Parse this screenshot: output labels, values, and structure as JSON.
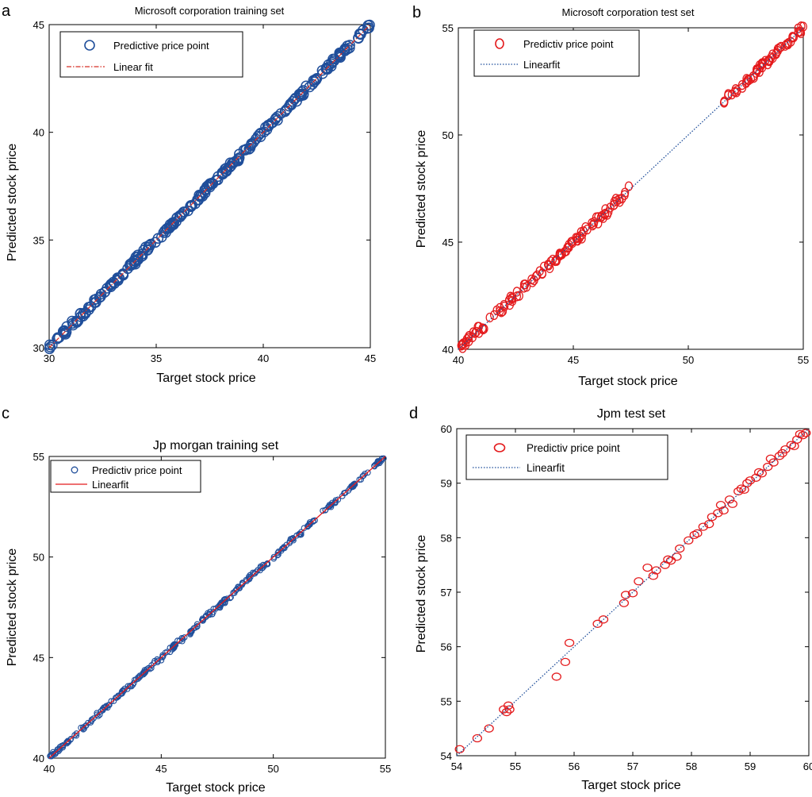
{
  "chart_data": [
    {
      "type": "scatter",
      "panel_label": "a",
      "title": "Microsoft corporation training set",
      "xlabel": "Target stock price",
      "ylabel": "Predicted stock price",
      "xlim": [
        30,
        45
      ],
      "ylim": [
        30,
        45
      ],
      "xticks": [
        30,
        35,
        40,
        45
      ],
      "yticks": [
        30,
        35,
        40,
        45
      ],
      "legend_position": "top-left",
      "series": [
        {
          "name": "Predictive price point",
          "marker": "circle",
          "color": "#1f4e9a",
          "ranges": [
            [
              30.0,
              45.0
            ]
          ],
          "count": 260,
          "noise": 0.12
        },
        {
          "name": "Linear fit",
          "line_style": "dashdot",
          "color": "#d73027",
          "slope": 1,
          "intercept": 0
        }
      ]
    },
    {
      "type": "scatter",
      "panel_label": "b",
      "title": "Microsoft corporation test set",
      "xlabel": "Target stock price",
      "ylabel": "Predicted stock price",
      "xlim": [
        40,
        55
      ],
      "ylim": [
        40,
        55
      ],
      "xticks": [
        40,
        45,
        50,
        55
      ],
      "yticks": [
        40,
        45,
        50,
        55
      ],
      "legend_position": "top-left",
      "series": [
        {
          "name": "Predictiv price point",
          "marker": "circle",
          "color": "#e41a1c",
          "ranges": [
            [
              40.0,
              47.5
            ],
            [
              51.5,
              55.0
            ]
          ],
          "count": 180,
          "noise": 0.15
        },
        {
          "name": "Linearfit",
          "line_style": "dotted",
          "color": "#1f4e9a",
          "slope": 1,
          "intercept": 0
        }
      ]
    },
    {
      "type": "scatter",
      "panel_label": "c",
      "title": "Jp morgan training set",
      "xlabel": "Target stock price",
      "ylabel": "Predicted stock price",
      "xlim": [
        40,
        55
      ],
      "ylim": [
        40,
        55
      ],
      "xticks": [
        40,
        45,
        50,
        55
      ],
      "yticks": [
        40,
        45,
        50,
        55
      ],
      "legend_position": "top-left",
      "series": [
        {
          "name": "Predictiv price point",
          "marker": "circle",
          "color": "#1f4e9a",
          "ranges": [
            [
              40.0,
              55.0
            ]
          ],
          "count": 300,
          "noise": 0.1
        },
        {
          "name": "Linearfit",
          "line_style": "solid",
          "color": "#e41a1c",
          "slope": 1,
          "intercept": 0
        }
      ]
    },
    {
      "type": "scatter",
      "panel_label": "d",
      "title": "Jpm test set",
      "xlabel": "Target stock price",
      "ylabel": "Predicted stock price",
      "xlim": [
        54,
        60
      ],
      "ylim": [
        54,
        60
      ],
      "xticks": [
        54,
        55,
        56,
        57,
        58,
        59,
        60
      ],
      "yticks": [
        54,
        55,
        56,
        57,
        58,
        59,
        60
      ],
      "legend_position": "top-left",
      "series": [
        {
          "name": "Predictiv price point",
          "marker": "circle",
          "color": "#e41a1c",
          "points": [
            [
              54.05,
              54.12
            ],
            [
              54.35,
              54.32
            ],
            [
              54.55,
              54.5
            ],
            [
              54.8,
              54.85
            ],
            [
              54.85,
              54.8
            ],
            [
              54.88,
              54.92
            ],
            [
              54.9,
              54.85
            ],
            [
              55.7,
              55.45
            ],
            [
              55.85,
              55.72
            ],
            [
              55.92,
              56.07
            ],
            [
              56.4,
              56.42
            ],
            [
              56.5,
              56.5
            ],
            [
              56.85,
              56.8
            ],
            [
              56.88,
              56.95
            ],
            [
              57.0,
              56.98
            ],
            [
              57.1,
              57.2
            ],
            [
              57.25,
              57.45
            ],
            [
              57.35,
              57.3
            ],
            [
              57.4,
              57.4
            ],
            [
              57.55,
              57.5
            ],
            [
              57.6,
              57.6
            ],
            [
              57.65,
              57.58
            ],
            [
              57.75,
              57.65
            ],
            [
              57.8,
              57.8
            ],
            [
              57.95,
              57.95
            ],
            [
              58.05,
              58.05
            ],
            [
              58.1,
              58.08
            ],
            [
              58.2,
              58.2
            ],
            [
              58.3,
              58.25
            ],
            [
              58.35,
              58.38
            ],
            [
              58.45,
              58.45
            ],
            [
              58.5,
              58.6
            ],
            [
              58.55,
              58.5
            ],
            [
              58.65,
              58.7
            ],
            [
              58.7,
              58.62
            ],
            [
              58.8,
              58.85
            ],
            [
              58.85,
              58.9
            ],
            [
              58.9,
              58.88
            ],
            [
              58.95,
              59.0
            ],
            [
              59.0,
              59.05
            ],
            [
              59.1,
              59.1
            ],
            [
              59.15,
              59.2
            ],
            [
              59.2,
              59.18
            ],
            [
              59.3,
              59.3
            ],
            [
              59.35,
              59.45
            ],
            [
              59.4,
              59.38
            ],
            [
              59.5,
              59.5
            ],
            [
              59.55,
              59.55
            ],
            [
              59.6,
              59.62
            ],
            [
              59.7,
              59.7
            ],
            [
              59.75,
              59.68
            ],
            [
              59.8,
              59.8
            ],
            [
              59.85,
              59.9
            ],
            [
              59.9,
              59.88
            ],
            [
              59.95,
              59.92
            ]
          ]
        },
        {
          "name": "Linearfit",
          "line_style": "dotted",
          "color": "#1f4e9a",
          "slope": 1,
          "intercept": 0
        }
      ]
    }
  ]
}
